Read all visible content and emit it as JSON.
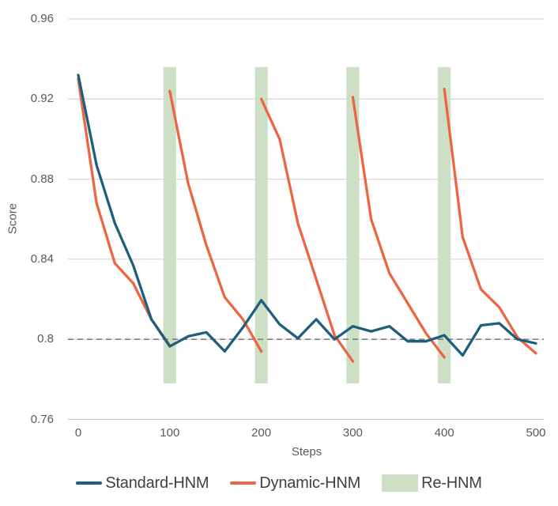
{
  "chart_data": {
    "type": "line",
    "title": "",
    "xlabel": "Steps",
    "ylabel": "Score",
    "xlim": [
      0,
      500
    ],
    "ylim": [
      0.76,
      0.96
    ],
    "x_ticks": [
      0,
      100,
      200,
      300,
      400,
      500
    ],
    "x_tick_labels": [
      "0",
      "100",
      "200",
      "300",
      "400",
      "500"
    ],
    "y_ticks": [
      0.96,
      0.92,
      0.88,
      0.84,
      0.8,
      0.76
    ],
    "y_tick_labels": [
      "0.96",
      "0.92",
      "0.88",
      "0.84",
      "0.8",
      "0.76"
    ],
    "grid": "horizontal",
    "reference_line": {
      "y": 0.8,
      "style": "dashed",
      "color": "#7f7f7f"
    },
    "bands": {
      "label": "Re-HNM",
      "color": "#cddfc5",
      "centers": [
        100,
        200,
        300,
        400
      ],
      "half_width_steps": 7,
      "y_range": [
        0.778,
        0.936
      ]
    },
    "series": [
      {
        "name": "Standard-HNM",
        "color": "#1f5f7d",
        "x": [
          0,
          20,
          40,
          60,
          80,
          100,
          120,
          140,
          160,
          180,
          200,
          220,
          240,
          260,
          280,
          300,
          320,
          340,
          360,
          380,
          400,
          420,
          440,
          460,
          480,
          500
        ],
        "y": [
          0.932,
          0.887,
          0.858,
          0.837,
          0.81,
          0.7965,
          0.8015,
          0.8035,
          0.794,
          0.806,
          0.8195,
          0.8075,
          0.8005,
          0.81,
          0.8,
          0.8065,
          0.804,
          0.8065,
          0.799,
          0.799,
          0.802,
          0.792,
          0.807,
          0.808,
          0.8,
          0.798
        ]
      },
      {
        "name": "Dynamic-HNM",
        "color": "#ea6742",
        "segments": [
          {
            "x": [
              0,
              20,
              40,
              60,
              80,
              100
            ],
            "y": [
              0.93,
              0.868,
              0.838,
              0.828,
              0.81,
              0.797
            ]
          },
          {
            "x": [
              100,
              120,
              140,
              160,
              180,
              200
            ],
            "y": [
              0.924,
              0.878,
              0.847,
              0.821,
              0.81,
              0.794
            ]
          },
          {
            "x": [
              200,
              220,
              240,
              260,
              280,
              300
            ],
            "y": [
              0.92,
              0.9,
              0.858,
              0.83,
              0.802,
              0.789
            ]
          },
          {
            "x": [
              300,
              320,
              340,
              360,
              380,
              400
            ],
            "y": [
              0.921,
              0.86,
              0.833,
              0.818,
              0.803,
              0.791
            ]
          },
          {
            "x": [
              400,
              420,
              440,
              460,
              480,
              500
            ],
            "y": [
              0.925,
              0.851,
              0.825,
              0.816,
              0.801,
              0.793
            ]
          }
        ]
      }
    ],
    "legend_position": "bottom"
  },
  "colors": {
    "gridline": "#d9d9d9",
    "axis_line": "#cccccc",
    "tick_text": "#595959",
    "legend_text": "#3f3f3f"
  }
}
